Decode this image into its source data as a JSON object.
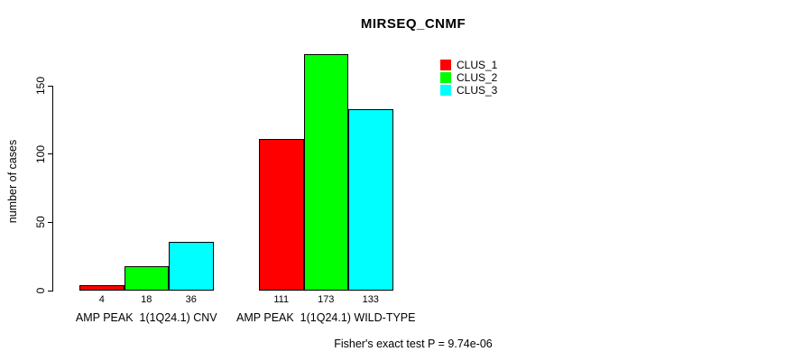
{
  "title": "MIRSEQ_CNMF",
  "chart_data": {
    "type": "bar",
    "title": "MIRSEQ_CNMF",
    "xlabel": "",
    "ylabel": "number of cases",
    "ylim": [
      0,
      175
    ],
    "yticks": [
      0,
      50,
      100,
      150
    ],
    "grid": false,
    "legend_position": "inside-top-center-right",
    "categories": [
      "AMP PEAK  1(1Q24.1) CNV",
      "AMP PEAK  1(1Q24.1) WILD-TYPE"
    ],
    "series": [
      {
        "name": "CLUS_1",
        "color": "#ff0000",
        "values": [
          4,
          111
        ]
      },
      {
        "name": "CLUS_2",
        "color": "#00ff00",
        "values": [
          18,
          173
        ]
      },
      {
        "name": "CLUS_3",
        "color": "#00ffff",
        "values": [
          36,
          133
        ]
      }
    ],
    "bar_value_labels": [
      [
        4,
        18,
        36
      ],
      [
        111,
        173,
        133
      ]
    ],
    "annotations": [
      "Fisher's exact test P = 9.74e-06"
    ]
  },
  "footer": {
    "text": "Fisher's exact test P = 9.74e-06"
  }
}
